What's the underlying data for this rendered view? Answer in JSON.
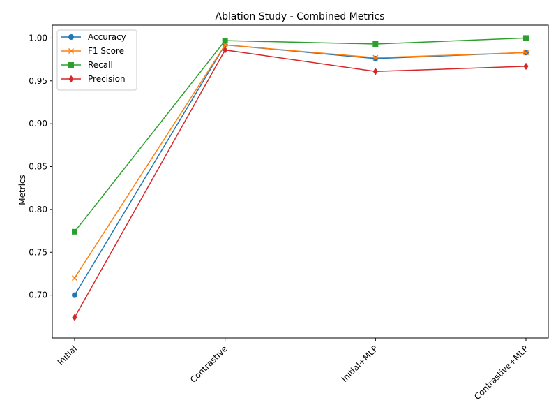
{
  "chart_data": {
    "type": "line",
    "title": "Ablation Study - Combined Metrics",
    "xlabel": "",
    "ylabel": "Metrics",
    "categories": [
      "Initial",
      "Contrastive",
      "Initial+MLP",
      "Contrastive+MLP"
    ],
    "ylim": [
      0.65,
      1.015
    ],
    "yticks": [
      0.7,
      0.75,
      0.8,
      0.85,
      0.9,
      0.95,
      1.0
    ],
    "ytick_labels": [
      "0.70",
      "0.75",
      "0.80",
      "0.85",
      "0.90",
      "0.95",
      "1.00"
    ],
    "grid": false,
    "legend_position": "top-left",
    "series": [
      {
        "name": "Accuracy",
        "color": "#1f77b4",
        "marker": "circle",
        "values": [
          0.7,
          0.992,
          0.976,
          0.983
        ]
      },
      {
        "name": "F1 Score",
        "color": "#ff7f0e",
        "marker": "x",
        "values": [
          0.72,
          0.992,
          0.977,
          0.983
        ]
      },
      {
        "name": "Recall",
        "color": "#2ca02c",
        "marker": "square",
        "values": [
          0.774,
          0.997,
          0.993,
          1.0
        ]
      },
      {
        "name": "Precision",
        "color": "#d62728",
        "marker": "diamond",
        "values": [
          0.674,
          0.986,
          0.961,
          0.967
        ]
      }
    ]
  }
}
